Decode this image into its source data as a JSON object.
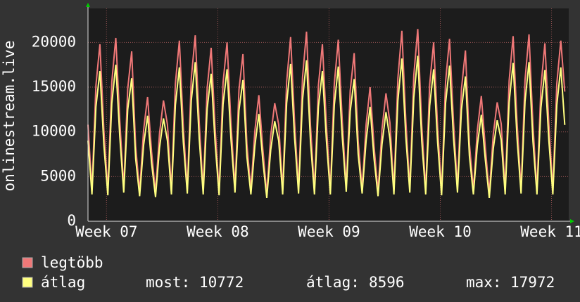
{
  "chart_data": {
    "type": "line",
    "ylabel": "onlinestream.live",
    "x": [
      0,
      6,
      12,
      18,
      24,
      30,
      36,
      42,
      48,
      54,
      60,
      66,
      72,
      78,
      84,
      90,
      96,
      102,
      108,
      114,
      120,
      126,
      132,
      138,
      144,
      150,
      156,
      162,
      168,
      174,
      180,
      186,
      192,
      198,
      204,
      210,
      216,
      222,
      228,
      234,
      240,
      246,
      252,
      258,
      264,
      270,
      276,
      282,
      288,
      294,
      300,
      306,
      312,
      318,
      324,
      330,
      336,
      342,
      348,
      354,
      360,
      366,
      372,
      378,
      384,
      390,
      396,
      402,
      408,
      414,
      420,
      426,
      432,
      438,
      444,
      450,
      456,
      462,
      468,
      474,
      480,
      486,
      492,
      498,
      504,
      510,
      516,
      522,
      528,
      534,
      540,
      546,
      552,
      558,
      564,
      570,
      576,
      582,
      588,
      594,
      600,
      606,
      612,
      618,
      624,
      630,
      636,
      642,
      648,
      654,
      660,
      666,
      672,
      678,
      684,
      690,
      696,
      702,
      708,
      714,
      720
    ],
    "xlim": [
      0,
      726
    ],
    "xticks": [
      {
        "value": 28,
        "label": "Week 07"
      },
      {
        "value": 196,
        "label": "Week 08"
      },
      {
        "value": 364,
        "label": "Week 09"
      },
      {
        "value": 532,
        "label": "Week 10"
      },
      {
        "value": 700,
        "label": "Week 11"
      }
    ],
    "ylim": [
      0,
      23800
    ],
    "yticks": [
      0,
      5000,
      10000,
      15000,
      20000
    ],
    "grid": true,
    "series": [
      {
        "name": "legtöbb",
        "color": "#f07878",
        "values": [
          10800,
          3500,
          15200,
          19800,
          10200,
          3400,
          15600,
          20500,
          11300,
          3700,
          14800,
          19000,
          8400,
          3300,
          10200,
          13900,
          7800,
          3200,
          9800,
          13500,
          10800,
          3500,
          15400,
          20200,
          10500,
          3600,
          16000,
          20800,
          11000,
          3500,
          14900,
          19400,
          10400,
          3400,
          15500,
          20000,
          10900,
          3700,
          14700,
          18700,
          8600,
          3500,
          10100,
          14100,
          8100,
          3100,
          9600,
          13200,
          10800,
          3500,
          15600,
          20600,
          11100,
          3600,
          16100,
          21200,
          10700,
          3500,
          15200,
          19800,
          10900,
          3500,
          15400,
          20300,
          11200,
          3800,
          14600,
          18800,
          9000,
          3600,
          10800,
          15000,
          8400,
          3300,
          10300,
          14300,
          11000,
          3500,
          16000,
          21300,
          11200,
          3700,
          16300,
          21500,
          10800,
          3500,
          15300,
          20000,
          10500,
          3400,
          15600,
          20400,
          11100,
          3700,
          14800,
          19100,
          8700,
          3500,
          10200,
          14000,
          8300,
          3100,
          9700,
          13300,
          10900,
          3500,
          15700,
          20700,
          11000,
          3600,
          15800,
          20900,
          10700,
          3500,
          15000,
          19900,
          10800,
          3500,
          15400,
          20200,
          14500
        ]
      },
      {
        "name": "átlag",
        "color": "#ffff80",
        "values": [
          9000,
          3000,
          12800,
          16800,
          8500,
          2900,
          13200,
          17500,
          9500,
          3200,
          12500,
          16000,
          7000,
          2800,
          8500,
          11800,
          6500,
          2700,
          8200,
          11500,
          9000,
          3000,
          13000,
          17200,
          8800,
          3100,
          13500,
          17800,
          9200,
          3000,
          12600,
          16500,
          8700,
          2900,
          13100,
          17000,
          9100,
          3200,
          12400,
          15800,
          7200,
          3000,
          8400,
          12000,
          6800,
          2600,
          8000,
          11200,
          9000,
          3000,
          13200,
          17600,
          9300,
          3100,
          13600,
          18000,
          8900,
          3000,
          12800,
          16800,
          9100,
          3000,
          13000,
          17300,
          9400,
          3300,
          12300,
          15900,
          7500,
          3100,
          9000,
          12800,
          7000,
          2800,
          8600,
          12200,
          9200,
          3000,
          13500,
          18200,
          9400,
          3200,
          13800,
          18500,
          9000,
          3000,
          12900,
          17000,
          8800,
          2900,
          13200,
          17400,
          9300,
          3200,
          12500,
          16200,
          7300,
          3000,
          8500,
          11900,
          6900,
          2600,
          8100,
          11300,
          9100,
          3000,
          13300,
          17700,
          9200,
          3100,
          13400,
          17800,
          8900,
          3000,
          12700,
          16900,
          9000,
          3000,
          13000,
          17200,
          10772
        ]
      }
    ],
    "stats": [
      {
        "label": "most:",
        "value": 10772
      },
      {
        "label": "átlag:",
        "value": 8596
      },
      {
        "label": "max:",
        "value": 17972
      }
    ]
  }
}
